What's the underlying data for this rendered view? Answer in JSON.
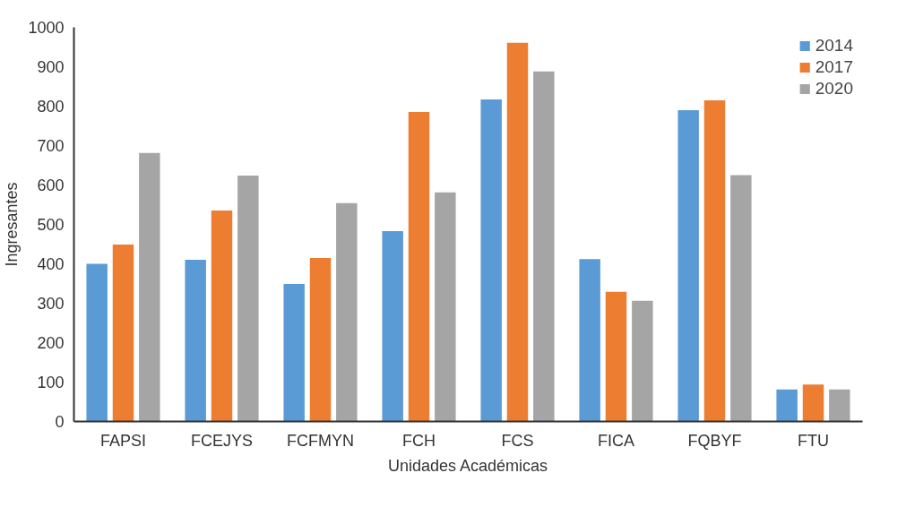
{
  "chart_data": {
    "type": "bar",
    "xlabel": "Unidades Académicas",
    "ylabel": "Ingresantes",
    "categories": [
      "FAPSI",
      "FCEJYS",
      "FCFMYN",
      "FCH",
      "FCS",
      "FICA",
      "FQBYF",
      "FTU"
    ],
    "series": [
      {
        "name": "2014",
        "color": "#5b9bd5",
        "values": [
          400,
          410,
          349,
          483,
          817,
          412,
          790,
          81
        ]
      },
      {
        "name": "2017",
        "color": "#ed7d31",
        "values": [
          449,
          535,
          415,
          785,
          961,
          329,
          815,
          94
        ]
      },
      {
        "name": "2020",
        "color": "#a5a5a5",
        "values": [
          681,
          624,
          554,
          581,
          888,
          306,
          625,
          81
        ]
      }
    ],
    "ylim": [
      0,
      1000
    ],
    "yticks": [
      0,
      100,
      200,
      300,
      400,
      500,
      600,
      700,
      800,
      900,
      1000
    ],
    "grid": false,
    "legend": "top right"
  }
}
